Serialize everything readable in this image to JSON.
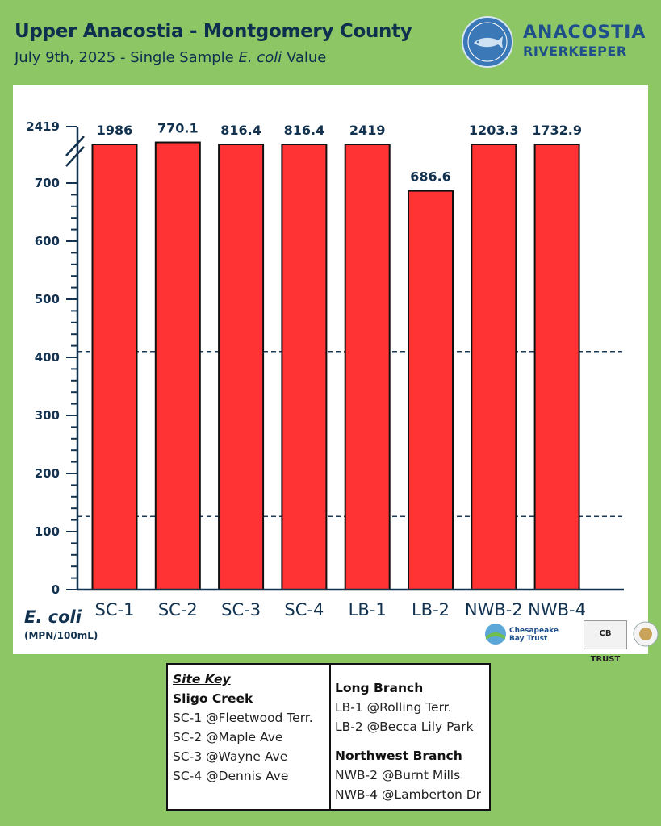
{
  "title": "Upper Anacostia - Montgomery County",
  "subtitle_pre": "July 9th, 2025 - Single Sample ",
  "subtitle_em": "E. coli",
  "subtitle_post": " Value",
  "logo": {
    "word1": "ANACOSTIA",
    "word2": "RIVERKEEPER",
    "icon": "fish-badge-icon"
  },
  "chart_data": {
    "type": "bar",
    "categories": [
      "SC-1",
      "SC-2",
      "SC-3",
      "SC-4",
      "LB-1",
      "LB-2",
      "NWB-2",
      "NWB-4"
    ],
    "values": [
      1986,
      770.1,
      816.4,
      816.4,
      2419,
      686.6,
      1203.3,
      1732.9
    ],
    "value_labels": [
      "1986",
      "770.1",
      "816.4",
      "816.4",
      "2419",
      "686.6",
      "1203.3",
      "1732.9"
    ],
    "ylabel": "E. coli",
    "ylabel_units": "(MPN/100mL)",
    "yticks": [
      "0",
      "100",
      "200",
      "300",
      "400",
      "500",
      "600",
      "700",
      "2419"
    ],
    "ylim": [
      0,
      2419
    ],
    "axis_break": true,
    "reference_lines": [
      410,
      126
    ],
    "bar_color": "#ff3333",
    "grid": false
  },
  "partners": [
    "Chesapeake Bay Trust",
    "CB TRUST"
  ],
  "site_key": {
    "title": "Site Key",
    "groups_left": [
      {
        "heading": "Sligo Creek",
        "items": [
          "SC-1 @Fleetwood Terr.",
          "SC-2 @Maple Ave",
          "SC-3 @Wayne Ave",
          "SC-4 @Dennis Ave"
        ]
      }
    ],
    "groups_right": [
      {
        "heading": "Long Branch",
        "items": [
          "LB-1 @Rolling Terr.",
          "LB-2 @Becca Lily Park"
        ]
      },
      {
        "heading": "Northwest Branch",
        "items": [
          "NWB-2 @Burnt Mills",
          "NWB-4 @Lamberton Dr"
        ]
      }
    ]
  }
}
